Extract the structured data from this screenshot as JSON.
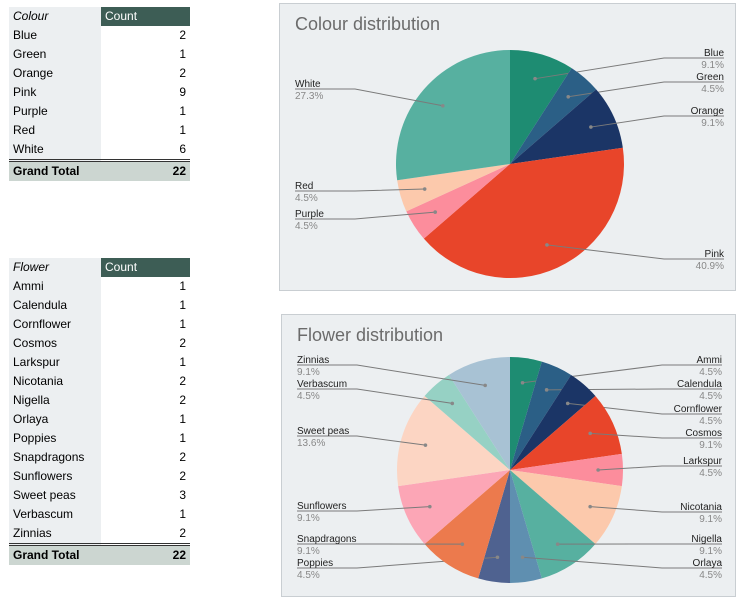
{
  "colour_table": {
    "header_label": "Colour",
    "header_value": "Count",
    "rows": [
      {
        "label": "Blue",
        "value": "2"
      },
      {
        "label": "Green",
        "value": "1"
      },
      {
        "label": "Orange",
        "value": "2"
      },
      {
        "label": "Pink",
        "value": "9"
      },
      {
        "label": "Purple",
        "value": "1"
      },
      {
        "label": "Red",
        "value": "1"
      },
      {
        "label": "White",
        "value": "6"
      }
    ],
    "total_label": "Grand Total",
    "total_value": "22"
  },
  "flower_table": {
    "header_label": "Flower",
    "header_value": "Count",
    "rows": [
      {
        "label": "Ammi",
        "value": "1"
      },
      {
        "label": "Calendula",
        "value": "1"
      },
      {
        "label": "Cornflower",
        "value": "1"
      },
      {
        "label": "Cosmos",
        "value": "2"
      },
      {
        "label": "Larkspur",
        "value": "1"
      },
      {
        "label": "Nicotania",
        "value": "2"
      },
      {
        "label": "Nigella",
        "value": "2"
      },
      {
        "label": "Orlaya",
        "value": "1"
      },
      {
        "label": "Poppies",
        "value": "1"
      },
      {
        "label": "Snapdragons",
        "value": "2"
      },
      {
        "label": "Sunflowers",
        "value": "2"
      },
      {
        "label": "Sweet peas",
        "value": "3"
      },
      {
        "label": "Verbascum",
        "value": "1"
      },
      {
        "label": "Zinnias",
        "value": "2"
      }
    ],
    "total_label": "Grand Total",
    "total_value": "22"
  },
  "chart_data": [
    {
      "type": "pie",
      "title": "Colour distribution",
      "slices": [
        {
          "label": "Blue",
          "value": 2,
          "percent": "9.1%",
          "color": "#1e8c72"
        },
        {
          "label": "Green",
          "value": 1,
          "percent": "4.5%",
          "color": "#2b5f86"
        },
        {
          "label": "Orange",
          "value": 2,
          "percent": "9.1%",
          "color": "#1b3566"
        },
        {
          "label": "Pink",
          "value": 9,
          "percent": "40.9%",
          "color": "#e8452a"
        },
        {
          "label": "Purple",
          "value": 1,
          "percent": "4.5%",
          "color": "#fc8d9c"
        },
        {
          "label": "Red",
          "value": 1,
          "percent": "4.5%",
          "color": "#fcc9ac"
        },
        {
          "label": "White",
          "value": 6,
          "percent": "27.3%",
          "color": "#57b0a0"
        }
      ]
    },
    {
      "type": "pie",
      "title": "Flower distribution",
      "slices": [
        {
          "label": "Ammi",
          "value": 1,
          "percent": "4.5%",
          "color": "#1e8c72"
        },
        {
          "label": "Calendula",
          "value": 1,
          "percent": "4.5%",
          "color": "#2b5f86"
        },
        {
          "label": "Cornflower",
          "value": 1,
          "percent": "4.5%",
          "color": "#1b3566"
        },
        {
          "label": "Cosmos",
          "value": 2,
          "percent": "9.1%",
          "color": "#e8452a"
        },
        {
          "label": "Larkspur",
          "value": 1,
          "percent": "4.5%",
          "color": "#fc8d9c"
        },
        {
          "label": "Nicotania",
          "value": 2,
          "percent": "9.1%",
          "color": "#fcc9ac"
        },
        {
          "label": "Nigella",
          "value": 2,
          "percent": "9.1%",
          "color": "#57b0a0"
        },
        {
          "label": "Orlaya",
          "value": 1,
          "percent": "4.5%",
          "color": "#5f8fb0"
        },
        {
          "label": "Poppies",
          "value": 1,
          "percent": "4.5%",
          "color": "#4f6290"
        },
        {
          "label": "Snapdragons",
          "value": 2,
          "percent": "9.1%",
          "color": "#ec7a4d"
        },
        {
          "label": "Sunflowers",
          "value": 2,
          "percent": "9.1%",
          "color": "#fca6b6"
        },
        {
          "label": "Sweet peas",
          "value": 3,
          "percent": "13.6%",
          "color": "#fcd5c3"
        },
        {
          "label": "Verbascum",
          "value": 1,
          "percent": "4.5%",
          "color": "#96d1c4"
        },
        {
          "label": "Zinnias",
          "value": 2,
          "percent": "9.1%",
          "color": "#a8c2d4"
        }
      ]
    }
  ]
}
